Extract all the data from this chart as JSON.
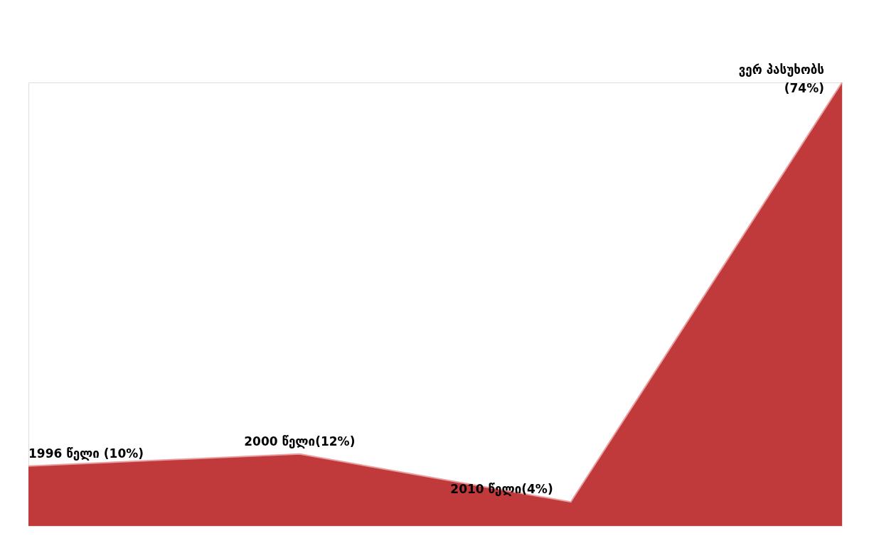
{
  "chart_data": {
    "type": "area",
    "categories": [
      null,
      null,
      null,
      null
    ],
    "values": [
      10,
      12,
      4,
      74
    ],
    "color": "#c0393b",
    "value_labels": [
      "1996 წელი (10%)",
      "2000 წელი(12%)",
      "2010 წელი(4%)",
      "ვერ პასუხობს\n(74%)"
    ],
    "tick_labels": false,
    "grid": false
  }
}
